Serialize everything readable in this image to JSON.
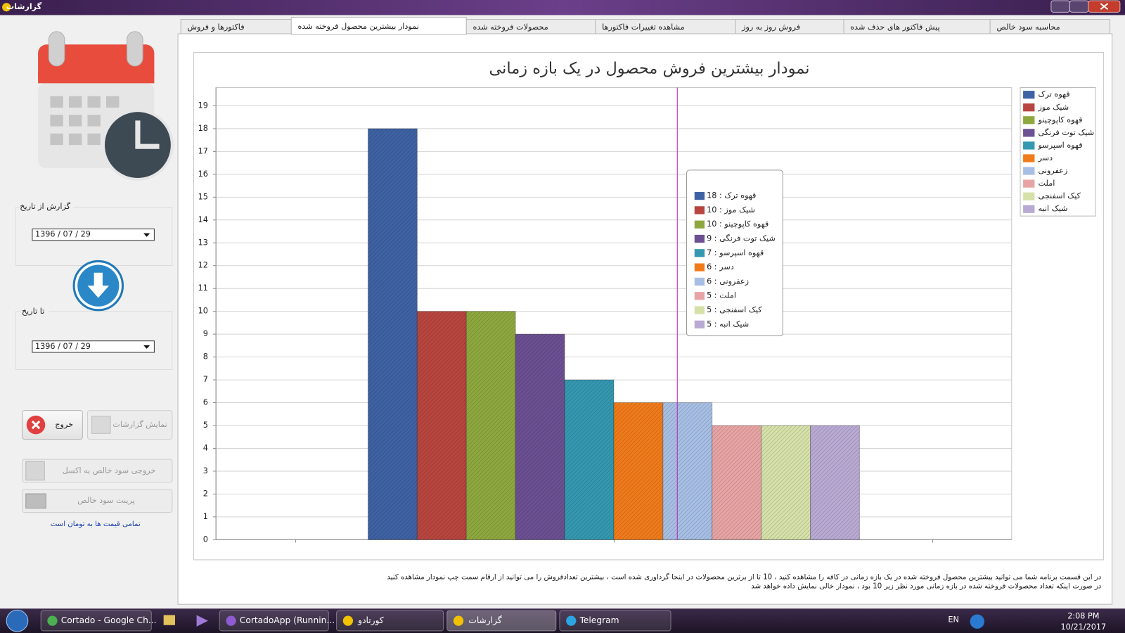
{
  "window": {
    "title": "گزارشات"
  },
  "tabs": [
    "فاکتورها و فروش",
    "نمودار بیشترین محصول فروخته شده",
    "محصولات فروخته شده",
    "مشاهده تغییرات فاکتورها",
    "فروش روز به روز",
    "پیش فاکتور های حذف شده",
    "محاسبه سود خالص"
  ],
  "sidebar": {
    "from_label": "گزارش از تاریخ",
    "from_date": "1396 / 07 / 29",
    "to_label": "تا تاریخ",
    "to_date": "1396 / 07 / 29",
    "exit_button": "خروج",
    "show_button": "نمایش گزارشات",
    "excel_button": "خروجی سود خالص به اکسل",
    "print_button": "پرینت سود خالص",
    "note": "تمامی قیمت ها به تومان است"
  },
  "chart_data": {
    "type": "bar",
    "title": "نمودار بیشترین فروش محصول در یک بازه زمانی",
    "categories": [
      "قهوه ترک",
      "شیک موز",
      "قهوه کاپوچینو",
      "شیک توت فرنگی",
      "قهوه اسپرسو",
      "دسر",
      "زعفرونی",
      "املت",
      "کیک اسفنجی",
      "شیک انبه"
    ],
    "values": [
      18,
      10,
      10,
      9,
      7,
      6,
      6,
      5,
      5,
      5
    ],
    "value_labels": [
      "قهوه ترک : 18",
      "شیک موز : 10",
      "قهوه کاپوچینو : 10",
      "شیک توت فرنگی : 9",
      "قهوه اسپرسو : 7",
      "دسر : 6",
      "زعفرونی : 6",
      "املت : 5",
      "کیک اسفنجی : 5",
      "شیک انبه : 5"
    ],
    "colors": [
      "#3e62a3",
      "#b8453f",
      "#8ea83f",
      "#6b5092",
      "#3498b0",
      "#f07b1b",
      "#a7bfe4",
      "#e8a4a4",
      "#d5e1a9",
      "#b9aad4"
    ],
    "ylim": [
      0,
      19.8
    ],
    "yticks": [
      0,
      1,
      2,
      3,
      4,
      5,
      6,
      7,
      8,
      9,
      10,
      11,
      12,
      13,
      14,
      15,
      16,
      17,
      18,
      19
    ],
    "grid": true,
    "legend": "right"
  },
  "footer": [
    "در این قسمت برنامه شما می توانید بیشترین محصول فروخته شده در یک بازه زمانی در کافه را مشاهده کنید ، 10 تا از برترین محصولات در اینجا گرداوری شده است ، بیشترین تعدادفروش را می توانید از ارقام سمت چپ نمودار مشاهده کنید",
    "در صورت اینکه تعداد محصولات فروخته شده در بازه زمانی مورد نظر زیر 10 بود ، نمودار خالی نمایش داده خواهد شد"
  ],
  "taskbar": {
    "items": [
      "Cortado - Google Ch...",
      "CortadoApp (Runnin...",
      "کورتادو",
      "گزارشات",
      "Telegram"
    ],
    "language": "EN",
    "time": "2:08 PM",
    "date": "10/21/2017"
  }
}
